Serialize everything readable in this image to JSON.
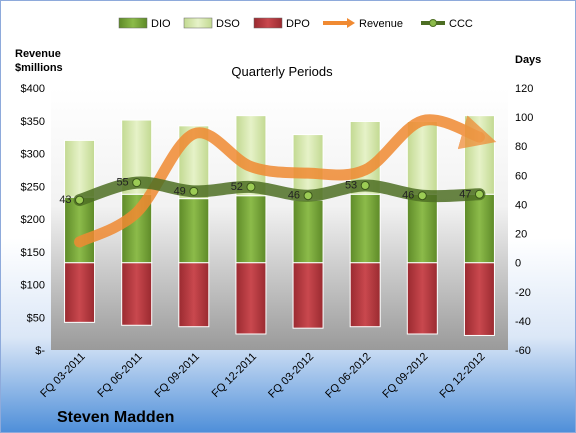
{
  "chart_data": {
    "type": "bar",
    "title": "Quarterly Periods",
    "company": "Steven Madden",
    "left_axis_title": [
      "Revenue",
      "$millions"
    ],
    "right_axis_title": "Days",
    "categories": [
      "FQ 03-2011",
      "FQ 06-2011",
      "FQ 09-2011",
      "FQ 12-2011",
      "FQ 03-2012",
      "FQ 06-2012",
      "FQ 09-2012",
      "FQ 12-2012"
    ],
    "left_ticks": [
      "$400",
      "$350",
      "$300",
      "$250",
      "$200",
      "$150",
      "$100",
      "$50",
      "$-"
    ],
    "right_ticks": [
      "120",
      "100",
      "80",
      "60",
      "40",
      "20",
      "0",
      "-20",
      "-40",
      "-60"
    ],
    "y_right_range": [
      -60,
      120
    ],
    "y_left_range": [
      0,
      400
    ],
    "legend": [
      "DIO",
      "DSO",
      "DPO",
      "Revenue",
      "CCC"
    ],
    "colors": {
      "DIO": "#77a33a",
      "DSO": "#d4e7a9",
      "DPO": "#b5363c",
      "Revenue": "#f08a32",
      "CCC": "#4d6e23"
    },
    "series": [
      {
        "name": "DIO",
        "axis": "right",
        "values": [
          45,
          47,
          44,
          46,
          43,
          47,
          47,
          47
        ]
      },
      {
        "name": "DSO",
        "axis": "right",
        "values": [
          39,
          51,
          50,
          55,
          45,
          50,
          50,
          54
        ]
      },
      {
        "name": "DPO",
        "axis": "right",
        "values": [
          -41,
          -43,
          -44,
          -49,
          -45,
          -44,
          -49,
          -50
        ]
      },
      {
        "name": "Revenue",
        "axis": "left",
        "values": [
          165,
          210,
          330,
          280,
          270,
          275,
          350,
          325
        ]
      },
      {
        "name": "CCC",
        "axis": "right",
        "values": [
          43,
          55,
          49,
          52,
          46,
          53,
          46,
          47
        ],
        "labels": [
          "43",
          "55",
          "49",
          "52",
          "46",
          "53",
          "46",
          "47"
        ]
      }
    ]
  }
}
